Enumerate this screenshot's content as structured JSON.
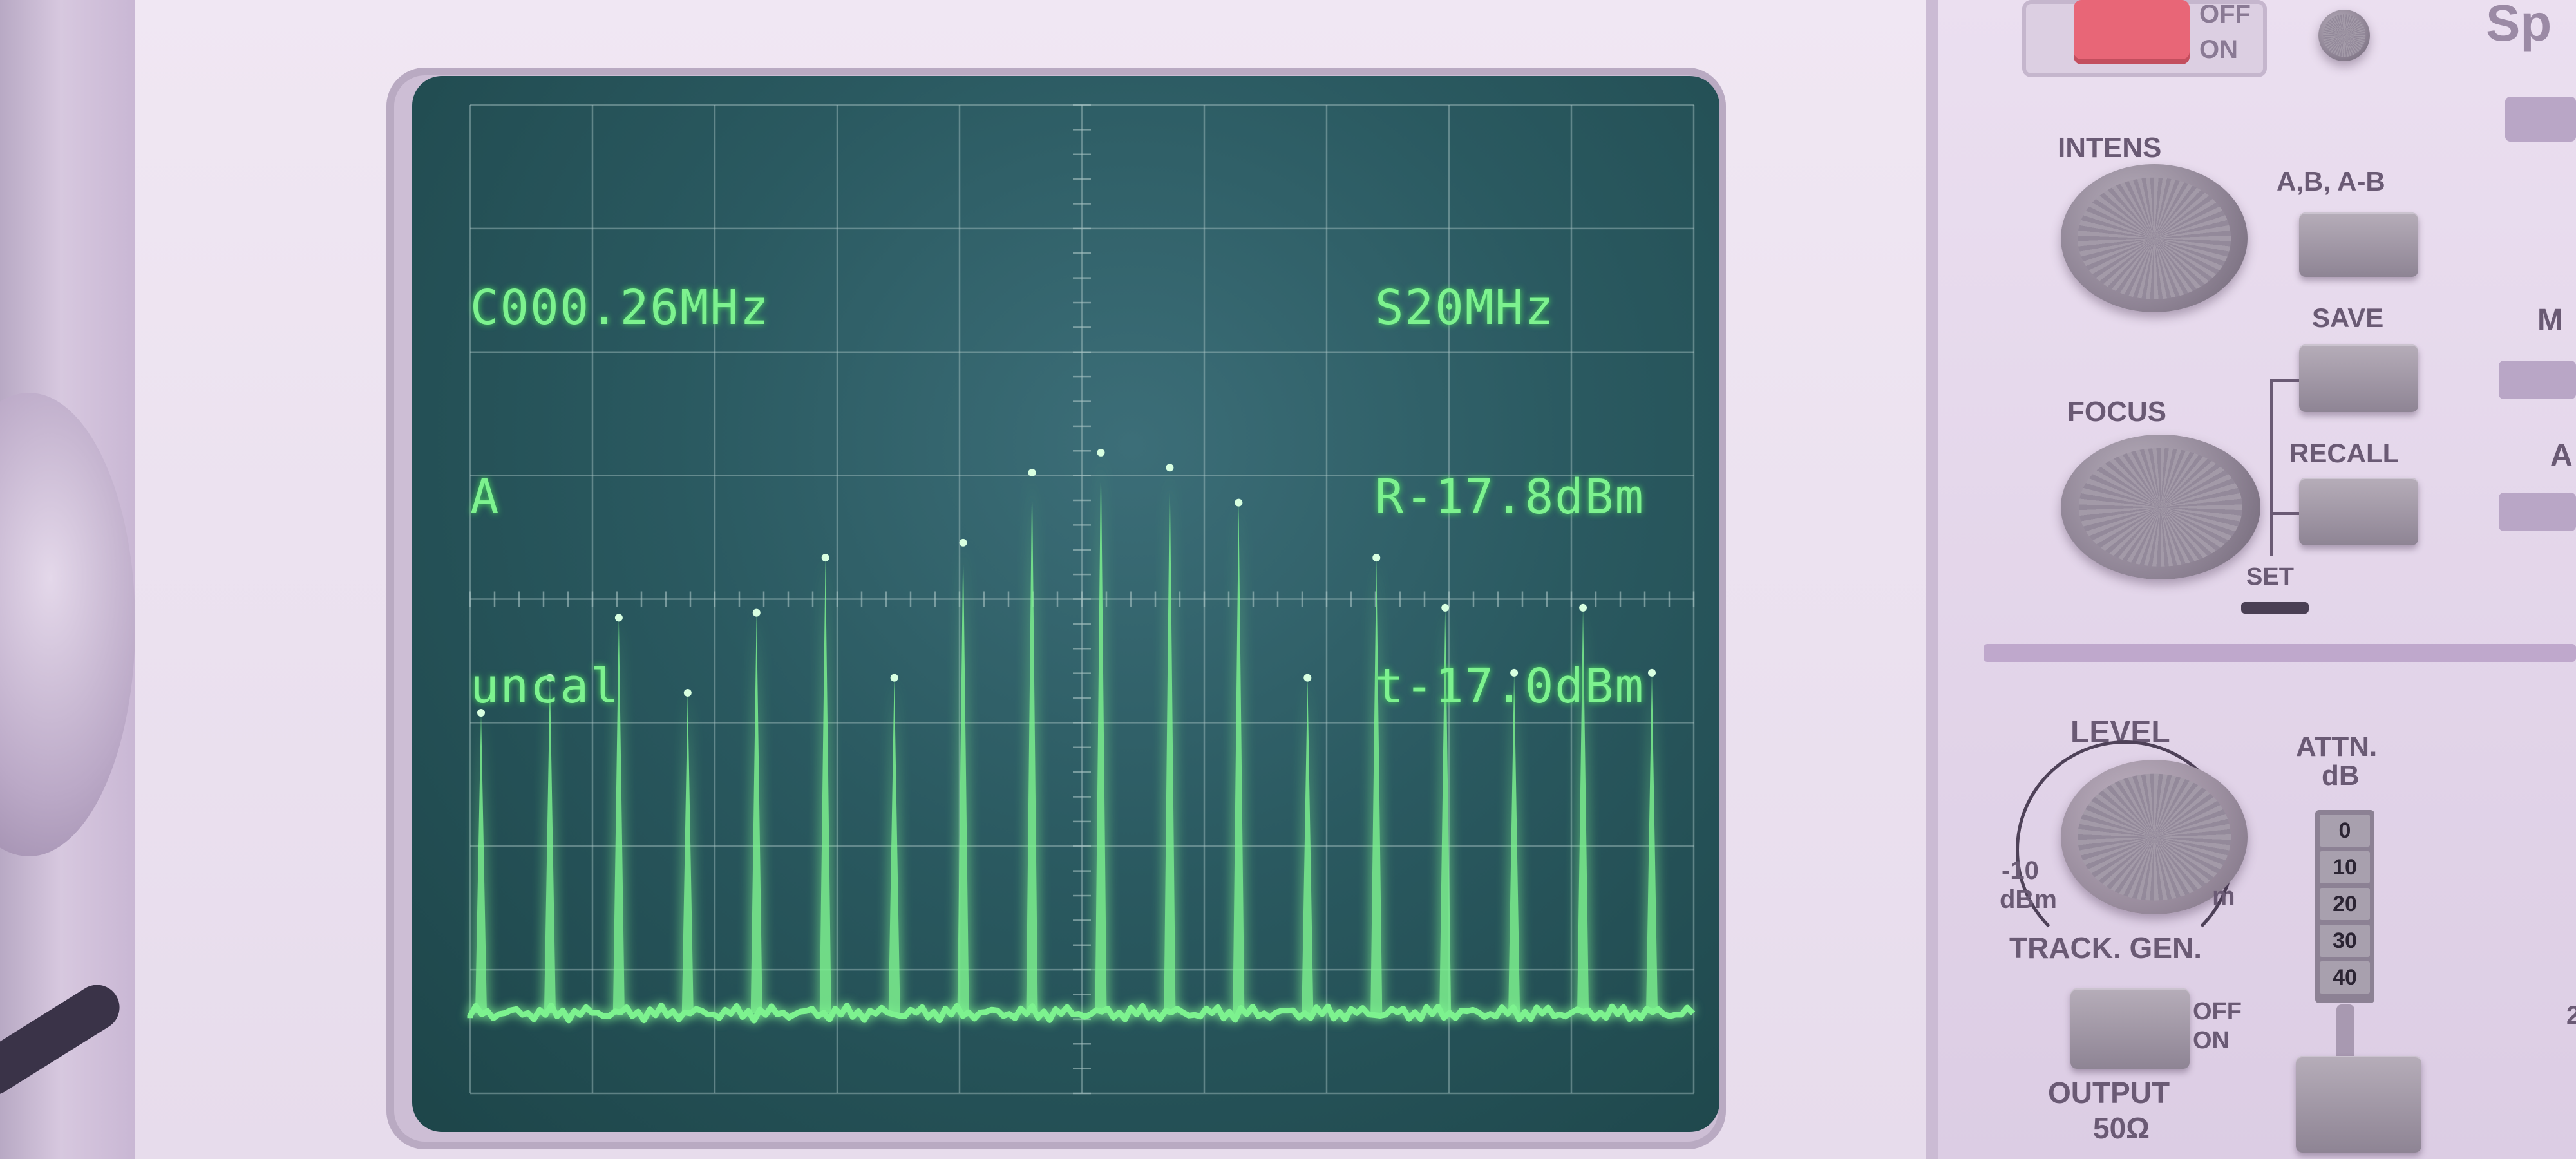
{
  "screen": {
    "readout_left": [
      "C000.26MHz",
      "A",
      "uncal"
    ],
    "readout_right": [
      "S20MHz",
      "R-17.8dBm",
      "t-17.0dBm"
    ],
    "trace_color": "#7df28f",
    "grid_color": "#a9c4c4",
    "peak_levels": [
      0.6,
      0.67,
      0.79,
      0.64,
      0.8,
      0.91,
      0.67,
      0.94,
      1.08,
      1.12,
      1.09,
      1.02,
      0.67,
      0.91,
      0.81,
      0.68,
      0.81,
      0.68
    ]
  },
  "panel": {
    "power": {
      "off": "OFF",
      "on": "ON"
    },
    "intens_label": "INTENS",
    "mode_label": "A,B, A-B",
    "save_label": "SAVE",
    "focus_label": "FOCUS",
    "recall_label": "RECALL",
    "set_label": "SET",
    "level_label": "LEVEL",
    "level_min": "-10",
    "level_unit": "dBm",
    "level_max": "m",
    "attn_label": "ATTN.",
    "attn_unit": "dB",
    "attn_values": [
      "0",
      "10",
      "20",
      "30",
      "40"
    ],
    "track_gen_label": "TRACK. GEN.",
    "tg_off": "OFF",
    "tg_on": "ON",
    "output_label": "OUTPUT",
    "output_impedance": "50Ω",
    "edge_label_1": "Sp",
    "edge_label_2": "M",
    "edge_label_3": "A",
    "edge_label_4": "2"
  }
}
